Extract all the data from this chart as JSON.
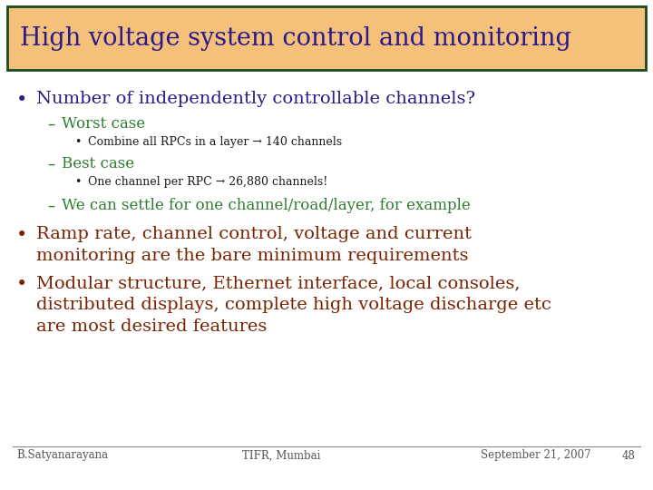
{
  "title": "High voltage system control and monitoring",
  "title_color": "#2B1A8A",
  "title_bg_color": "#F5C07A",
  "title_border_color": "#1A4A1A",
  "slide_bg_color": "#FFFFFF",
  "bullet1_color": "#2B1A8A",
  "bullet1_text": "Number of independently controllable channels?",
  "sub1_color": "#2E7D2E",
  "sub1_text": "Worst case",
  "subsub1_color": "#1A1A1A",
  "subsub1_text": "Combine all RPCs in a layer → 140 channels",
  "sub2_color": "#2E7D2E",
  "sub2_text": "Best case",
  "subsub2_color": "#1A1A1A",
  "subsub2_text": "One channel per RPC → 26,880 channels!",
  "sub3_color": "#2E7D2E",
  "sub3_text": "We can settle for one channel/road/layer, for example",
  "bullet2_color": "#7B2200",
  "bullet2_line1": "Ramp rate, channel control, voltage and current",
  "bullet2_line2": "monitoring are the bare minimum requirements",
  "bullet3_color": "#7B2200",
  "bullet3_line1": "Modular structure, Ethernet interface, local consoles,",
  "bullet3_line2": "distributed displays, complete high voltage discharge etc",
  "bullet3_line3": "are most desired features",
  "footer_left": "B.Satyanarayana",
  "footer_center": "TIFR, Mumbai",
  "footer_right": "September 21, 2007",
  "footer_page": "48",
  "footer_color": "#555555"
}
